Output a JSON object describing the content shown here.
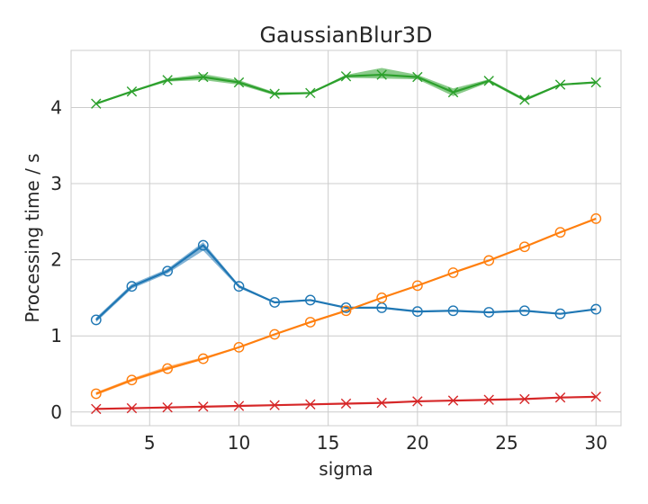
{
  "chart_data": {
    "type": "line",
    "title": "GaussianBlur3D",
    "xlabel": "sigma",
    "ylabel": "Processing time / s",
    "xlim": [
      0.6,
      31.4
    ],
    "ylim": [
      -0.18,
      4.75
    ],
    "xticks": [
      5,
      10,
      15,
      20,
      25,
      30
    ],
    "yticks": [
      0,
      1,
      2,
      3,
      4
    ],
    "x_tick_labels": [
      "5",
      "10",
      "15",
      "20",
      "25",
      "30"
    ],
    "y_tick_labels": [
      "0",
      "1",
      "2",
      "3",
      "4"
    ],
    "grid": true,
    "x": [
      2,
      4,
      6,
      8,
      10,
      12,
      14,
      16,
      18,
      20,
      22,
      24,
      26,
      28,
      30
    ],
    "series": [
      {
        "color": "#1f77b4",
        "marker": "circle",
        "values": [
          1.21,
          1.65,
          1.85,
          2.19,
          1.65,
          1.44,
          1.47,
          1.37,
          1.37,
          1.32,
          1.33,
          1.31,
          1.33,
          1.29,
          1.35
        ],
        "band_low": [
          1.18,
          1.62,
          1.82,
          2.12,
          1.63,
          1.43,
          1.46,
          1.36,
          1.36,
          1.31,
          1.32,
          1.3,
          1.32,
          1.28,
          1.34
        ],
        "band_high": [
          1.24,
          1.68,
          1.88,
          2.23,
          1.67,
          1.45,
          1.48,
          1.38,
          1.38,
          1.33,
          1.34,
          1.32,
          1.34,
          1.3,
          1.36
        ]
      },
      {
        "color": "#ff7f0e",
        "marker": "circle",
        "values": [
          0.24,
          0.42,
          0.57,
          0.7,
          0.85,
          1.02,
          1.18,
          1.33,
          1.5,
          1.66,
          1.83,
          1.99,
          2.17,
          2.36,
          2.54
        ],
        "band_low": [
          0.22,
          0.4,
          0.55,
          0.69,
          0.84,
          1.01,
          1.17,
          1.32,
          1.49,
          1.65,
          1.82,
          1.98,
          2.16,
          2.35,
          2.53
        ],
        "band_high": [
          0.26,
          0.44,
          0.6,
          0.72,
          0.86,
          1.03,
          1.19,
          1.34,
          1.51,
          1.67,
          1.84,
          2.0,
          2.18,
          2.37,
          2.55
        ]
      },
      {
        "color": "#2ca02c",
        "marker": "x",
        "values": [
          4.05,
          4.21,
          4.36,
          4.4,
          4.33,
          4.18,
          4.19,
          4.41,
          4.43,
          4.4,
          4.2,
          4.35,
          4.1,
          4.3,
          4.33
        ],
        "band_low": [
          4.04,
          4.2,
          4.34,
          4.36,
          4.3,
          4.16,
          4.18,
          4.39,
          4.38,
          4.37,
          4.15,
          4.33,
          4.08,
          4.29,
          4.32
        ],
        "band_high": [
          4.06,
          4.22,
          4.38,
          4.44,
          4.36,
          4.2,
          4.2,
          4.43,
          4.52,
          4.43,
          4.25,
          4.37,
          4.12,
          4.31,
          4.34
        ]
      },
      {
        "color": "#d62728",
        "marker": "x",
        "values": [
          0.04,
          0.05,
          0.06,
          0.07,
          0.08,
          0.09,
          0.1,
          0.11,
          0.12,
          0.14,
          0.15,
          0.16,
          0.17,
          0.19,
          0.2
        ],
        "band_low": [
          0.04,
          0.05,
          0.06,
          0.07,
          0.08,
          0.09,
          0.1,
          0.11,
          0.12,
          0.14,
          0.15,
          0.16,
          0.17,
          0.19,
          0.2
        ],
        "band_high": [
          0.04,
          0.05,
          0.06,
          0.07,
          0.08,
          0.09,
          0.1,
          0.11,
          0.12,
          0.14,
          0.15,
          0.16,
          0.17,
          0.19,
          0.2
        ]
      }
    ]
  }
}
